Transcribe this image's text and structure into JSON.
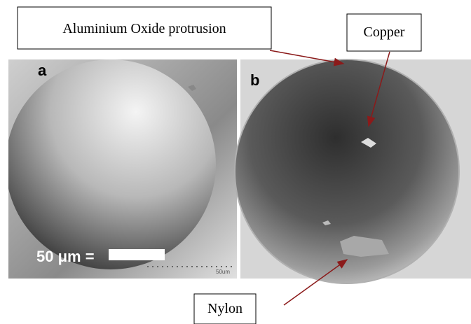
{
  "annotations": {
    "top_left": "Aluminium Oxide protrusion",
    "top_right": "Copper",
    "bottom": "Nylon"
  },
  "panels": [
    {
      "label": "a",
      "scale_text": "50 μm =",
      "micro_label": "50um"
    },
    {
      "label": "b"
    }
  ]
}
